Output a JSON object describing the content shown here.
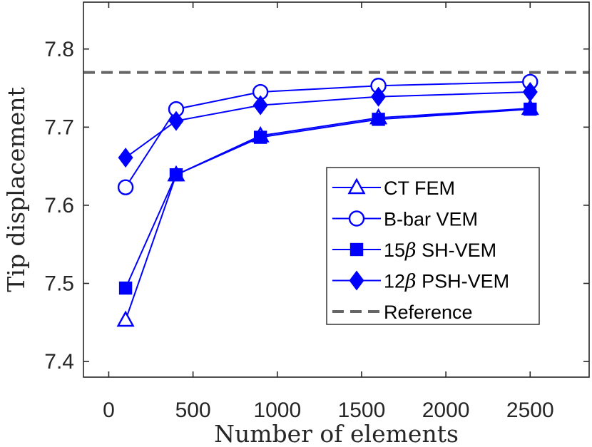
{
  "chart_data": {
    "type": "line",
    "xlabel": "Number of elements",
    "ylabel": "Tip displacement",
    "xlim": [
      -150,
      2850
    ],
    "ylim": [
      7.38,
      7.86
    ],
    "xticks": [
      0,
      500,
      1000,
      1500,
      2000,
      2500
    ],
    "yticks": [
      7.4,
      7.5,
      7.6,
      7.7,
      7.8
    ],
    "xtick_labels": [
      "0",
      "500",
      "1000",
      "1500",
      "2000",
      "2500"
    ],
    "ytick_labels": [
      "7.4",
      "7.5",
      "7.6",
      "7.7",
      "7.8"
    ],
    "x": [
      100,
      400,
      900,
      1600,
      2500
    ],
    "series": [
      {
        "name": "CT FEM",
        "marker": "triangle",
        "filled": false,
        "values": [
          7.453,
          7.639,
          7.689,
          7.712,
          7.724
        ]
      },
      {
        "name": "B-bar VEM",
        "marker": "circle",
        "filled": false,
        "values": [
          7.623,
          7.723,
          7.745,
          7.753,
          7.758
        ]
      },
      {
        "name": "15β SH-VEM",
        "marker": "square",
        "filled": true,
        "values": [
          7.494,
          7.639,
          7.687,
          7.71,
          7.723
        ]
      },
      {
        "name": "12β PSH-VEM",
        "marker": "diamond",
        "filled": true,
        "values": [
          7.661,
          7.708,
          7.728,
          7.739,
          7.745
        ]
      }
    ],
    "reference": {
      "name": "Reference",
      "value": 7.77,
      "style": "dashed"
    },
    "legend": {
      "placement": "right-middle",
      "entries": [
        {
          "label": "CT FEM",
          "prefix": "",
          "greek": "",
          "suffix": ""
        },
        {
          "label": "B-bar VEM",
          "prefix": "",
          "greek": "",
          "suffix": ""
        },
        {
          "label": "",
          "prefix": "15",
          "greek": "β",
          "suffix": " SH-VEM"
        },
        {
          "label": "",
          "prefix": "12",
          "greek": "β",
          "suffix": " PSH-VEM"
        },
        {
          "label": "Reference",
          "prefix": "",
          "greek": "",
          "suffix": ""
        }
      ]
    },
    "colors": {
      "series": "#0000ff",
      "reference": "#666666",
      "axis": "#262626"
    }
  }
}
